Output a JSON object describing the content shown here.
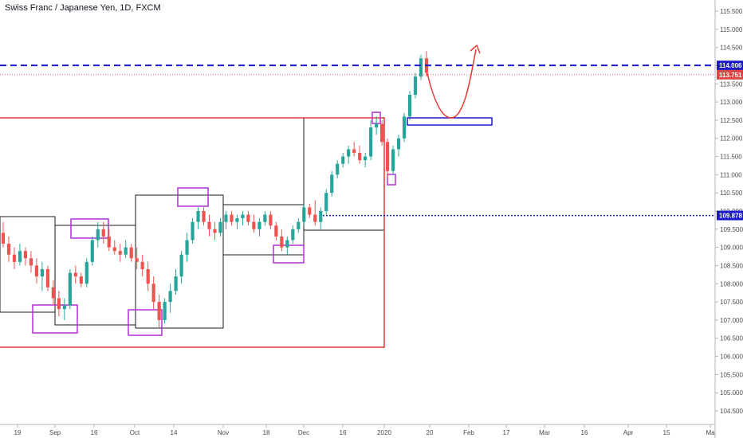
{
  "chart_data": {
    "type": "candlestick",
    "title": "Swiss Franc / Japanese Yen, 1D, FXCM",
    "ylim": [
      104.2,
      116.0
    ],
    "y_ticks": [
      "104.500",
      "105.000",
      "105.500",
      "106.000",
      "106.500",
      "107.000",
      "107.500",
      "108.000",
      "108.500",
      "109.000",
      "109.500",
      "110.000",
      "110.500",
      "111.000",
      "111.500",
      "112.000",
      "112.500",
      "113.000",
      "113.500",
      "114.000",
      "114.500",
      "115.000",
      "115.500"
    ],
    "x_ticks": [
      "19",
      "Sep",
      "16",
      "Oct",
      "14",
      "Nov",
      "18",
      "Dec",
      "16",
      "2020",
      "20",
      "Feb",
      "17",
      "Mar",
      "16",
      "Apr",
      "15",
      "Ma"
    ],
    "price_labels": [
      {
        "label": "114.006",
        "value": 114.006,
        "color": "#1a1acc"
      },
      {
        "label": "113.751",
        "value": 113.751,
        "color": "#e04545"
      },
      {
        "label": "109.878",
        "value": 109.878,
        "color": "#1a1acc"
      }
    ],
    "colors": {
      "up": "#26a69a",
      "down": "#ef5350",
      "blue_line": "#1a1acc",
      "red_box": "#e53935",
      "purple": "#b030d0"
    },
    "candles": [
      [
        109.4,
        109.7,
        109.0,
        109.1
      ],
      [
        109.1,
        109.3,
        108.6,
        108.8
      ],
      [
        108.8,
        109.0,
        108.4,
        108.6
      ],
      [
        108.6,
        109.1,
        108.5,
        108.9
      ],
      [
        108.9,
        109.0,
        108.5,
        108.7
      ],
      [
        108.7,
        108.9,
        108.3,
        108.5
      ],
      [
        108.5,
        108.7,
        108.0,
        108.2
      ],
      [
        108.2,
        108.6,
        107.8,
        108.4
      ],
      [
        108.4,
        108.5,
        107.8,
        107.9
      ],
      [
        107.9,
        108.1,
        107.4,
        107.6
      ],
      [
        107.6,
        107.8,
        107.1,
        107.3
      ],
      [
        107.3,
        107.6,
        107.0,
        107.4
      ],
      [
        107.4,
        108.4,
        107.3,
        108.3
      ],
      [
        108.3,
        108.5,
        108.0,
        108.2
      ],
      [
        108.2,
        108.3,
        107.9,
        108.0
      ],
      [
        108.0,
        108.7,
        107.9,
        108.6
      ],
      [
        108.6,
        109.3,
        108.5,
        109.2
      ],
      [
        109.2,
        109.7,
        109.0,
        109.5
      ],
      [
        109.5,
        109.7,
        109.1,
        109.3
      ],
      [
        109.3,
        109.5,
        108.9,
        109.0
      ],
      [
        109.0,
        109.2,
        108.8,
        108.9
      ],
      [
        108.9,
        109.1,
        108.6,
        108.8
      ],
      [
        108.8,
        109.2,
        108.7,
        109.0
      ],
      [
        109.0,
        109.1,
        108.6,
        108.7
      ],
      [
        108.7,
        109.0,
        108.4,
        108.6
      ],
      [
        108.6,
        108.8,
        108.2,
        108.4
      ],
      [
        108.4,
        108.6,
        107.8,
        108.0
      ],
      [
        108.0,
        108.2,
        107.3,
        107.5
      ],
      [
        107.5,
        107.7,
        106.8,
        107.0
      ],
      [
        107.0,
        107.6,
        106.9,
        107.5
      ],
      [
        107.5,
        108.0,
        107.2,
        107.8
      ],
      [
        107.8,
        108.4,
        107.7,
        108.2
      ],
      [
        108.2,
        108.9,
        108.0,
        108.8
      ],
      [
        108.8,
        109.4,
        108.6,
        109.2
      ],
      [
        109.2,
        109.8,
        109.1,
        109.7
      ],
      [
        109.7,
        110.1,
        109.5,
        110.0
      ],
      [
        110.0,
        110.1,
        109.6,
        109.7
      ],
      [
        109.7,
        109.9,
        109.3,
        109.5
      ],
      [
        109.5,
        109.7,
        109.2,
        109.4
      ],
      [
        109.4,
        109.8,
        109.3,
        109.7
      ],
      [
        109.7,
        110.0,
        109.5,
        109.9
      ],
      [
        109.9,
        110.0,
        109.6,
        109.7
      ],
      [
        109.7,
        109.9,
        109.5,
        109.8
      ],
      [
        109.8,
        110.0,
        109.6,
        109.9
      ],
      [
        109.9,
        110.0,
        109.6,
        109.7
      ],
      [
        109.7,
        109.9,
        109.4,
        109.5
      ],
      [
        109.5,
        109.8,
        109.3,
        109.7
      ],
      [
        109.7,
        110.0,
        109.6,
        109.9
      ],
      [
        109.9,
        110.0,
        109.5,
        109.6
      ],
      [
        109.6,
        109.7,
        109.2,
        109.3
      ],
      [
        109.3,
        109.5,
        108.9,
        109.0
      ],
      [
        109.0,
        109.3,
        108.8,
        109.2
      ],
      [
        109.2,
        109.6,
        109.1,
        109.5
      ],
      [
        109.5,
        109.8,
        109.4,
        109.7
      ],
      [
        109.7,
        110.2,
        109.6,
        110.1
      ],
      [
        110.1,
        110.2,
        109.8,
        109.9
      ],
      [
        109.9,
        110.3,
        109.6,
        109.7
      ],
      [
        109.7,
        110.1,
        109.5,
        110.0
      ],
      [
        110.0,
        110.6,
        109.9,
        110.5
      ],
      [
        110.5,
        111.1,
        110.4,
        111.0
      ],
      [
        111.0,
        111.4,
        110.9,
        111.3
      ],
      [
        111.3,
        111.6,
        111.2,
        111.5
      ],
      [
        111.5,
        111.8,
        111.3,
        111.7
      ],
      [
        111.7,
        111.9,
        111.5,
        111.6
      ],
      [
        111.6,
        111.8,
        111.3,
        111.4
      ],
      [
        111.4,
        111.6,
        111.2,
        111.5
      ],
      [
        111.5,
        112.5,
        111.4,
        112.3
      ],
      [
        112.3,
        112.6,
        112.1,
        112.4
      ],
      [
        112.4,
        112.5,
        111.8,
        111.9
      ],
      [
        111.9,
        112.0,
        110.9,
        111.1
      ],
      [
        111.1,
        111.8,
        111.0,
        111.7
      ],
      [
        111.7,
        112.1,
        111.5,
        112.0
      ],
      [
        112.0,
        112.7,
        111.9,
        112.6
      ],
      [
        112.6,
        113.3,
        112.5,
        113.2
      ],
      [
        113.2,
        113.8,
        113.1,
        113.7
      ],
      [
        113.7,
        114.3,
        113.6,
        114.2
      ],
      [
        114.2,
        114.4,
        113.7,
        113.8
      ]
    ]
  }
}
